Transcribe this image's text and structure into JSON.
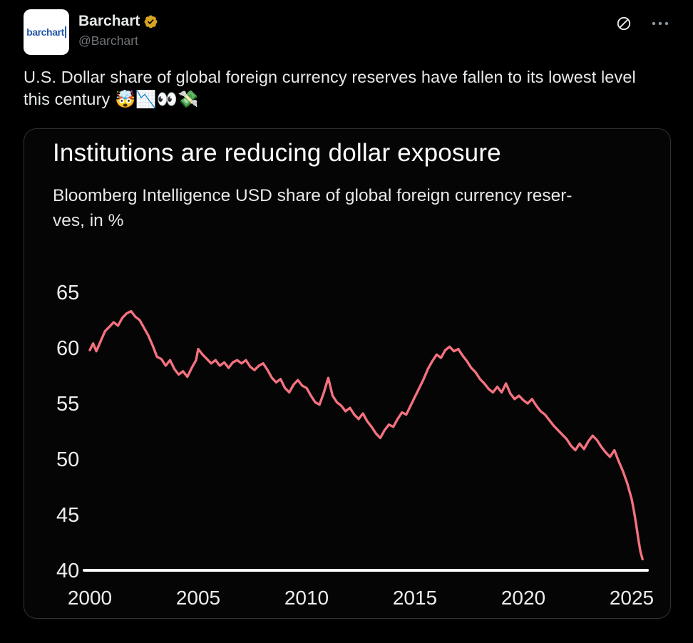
{
  "header": {
    "avatar_text": "barchart",
    "display_name": "Barchart",
    "handle": "@Barchart",
    "badge_color": "#d9a521"
  },
  "tweet": {
    "text": "U.S. Dollar share of global foreign currency reserves have fallen to its lowest level this century 🤯📉👀💸"
  },
  "chart_data": {
    "type": "line",
    "title": "Institutions are reducing dollar exposure",
    "subtitle_line1": "Bloomberg Intelligence USD share of global foreign currency reser-",
    "subtitle_line2": "ves, in %",
    "ylabel": "USD share of global foreign currency reserves, in %",
    "x_ticks": [
      2000,
      2005,
      2010,
      2015,
      2020,
      2025
    ],
    "y_ticks": [
      65,
      60,
      55,
      50,
      45,
      40
    ],
    "ylim": [
      40,
      65
    ],
    "xlim": [
      2000,
      2025
    ],
    "grid": false,
    "legend": "none",
    "line_color": "#f4717f",
    "axis_color": "#ffffff",
    "points": [
      [
        2000.0,
        59.8
      ],
      [
        2000.15,
        60.4
      ],
      [
        2000.3,
        59.7
      ],
      [
        2000.5,
        60.6
      ],
      [
        2000.7,
        61.5
      ],
      [
        2000.9,
        61.9
      ],
      [
        2001.1,
        62.3
      ],
      [
        2001.3,
        62.0
      ],
      [
        2001.5,
        62.7
      ],
      [
        2001.7,
        63.1
      ],
      [
        2001.9,
        63.3
      ],
      [
        2002.1,
        62.8
      ],
      [
        2002.3,
        62.5
      ],
      [
        2002.5,
        61.8
      ],
      [
        2002.7,
        61.1
      ],
      [
        2002.9,
        60.2
      ],
      [
        2003.1,
        59.2
      ],
      [
        2003.3,
        59.0
      ],
      [
        2003.5,
        58.4
      ],
      [
        2003.7,
        58.9
      ],
      [
        2003.9,
        58.1
      ],
      [
        2004.1,
        57.6
      ],
      [
        2004.3,
        57.9
      ],
      [
        2004.5,
        57.4
      ],
      [
        2004.7,
        58.2
      ],
      [
        2004.9,
        58.9
      ],
      [
        2005.0,
        59.9
      ],
      [
        2005.2,
        59.4
      ],
      [
        2005.4,
        59.0
      ],
      [
        2005.6,
        58.6
      ],
      [
        2005.8,
        58.9
      ],
      [
        2006.0,
        58.4
      ],
      [
        2006.2,
        58.7
      ],
      [
        2006.4,
        58.2
      ],
      [
        2006.6,
        58.7
      ],
      [
        2006.8,
        58.9
      ],
      [
        2007.0,
        58.6
      ],
      [
        2007.2,
        58.9
      ],
      [
        2007.4,
        58.3
      ],
      [
        2007.6,
        58.0
      ],
      [
        2007.8,
        58.4
      ],
      [
        2008.0,
        58.6
      ],
      [
        2008.2,
        58.0
      ],
      [
        2008.4,
        57.3
      ],
      [
        2008.6,
        56.9
      ],
      [
        2008.8,
        57.2
      ],
      [
        2009.0,
        56.4
      ],
      [
        2009.2,
        56.0
      ],
      [
        2009.4,
        56.7
      ],
      [
        2009.6,
        57.1
      ],
      [
        2009.8,
        56.6
      ],
      [
        2010.0,
        56.4
      ],
      [
        2010.2,
        55.7
      ],
      [
        2010.4,
        55.1
      ],
      [
        2010.6,
        54.9
      ],
      [
        2010.8,
        56.0
      ],
      [
        2011.0,
        57.3
      ],
      [
        2011.2,
        55.7
      ],
      [
        2011.4,
        55.1
      ],
      [
        2011.6,
        54.8
      ],
      [
        2011.8,
        54.3
      ],
      [
        2012.0,
        54.6
      ],
      [
        2012.2,
        54.0
      ],
      [
        2012.4,
        53.6
      ],
      [
        2012.6,
        54.1
      ],
      [
        2012.8,
        53.4
      ],
      [
        2013.0,
        52.9
      ],
      [
        2013.2,
        52.3
      ],
      [
        2013.4,
        51.9
      ],
      [
        2013.6,
        52.6
      ],
      [
        2013.8,
        53.1
      ],
      [
        2014.0,
        52.9
      ],
      [
        2014.2,
        53.6
      ],
      [
        2014.4,
        54.2
      ],
      [
        2014.6,
        54.0
      ],
      [
        2014.8,
        54.8
      ],
      [
        2015.0,
        55.6
      ],
      [
        2015.2,
        56.4
      ],
      [
        2015.4,
        57.2
      ],
      [
        2015.6,
        58.1
      ],
      [
        2015.8,
        58.8
      ],
      [
        2016.0,
        59.4
      ],
      [
        2016.2,
        59.1
      ],
      [
        2016.4,
        59.8
      ],
      [
        2016.6,
        60.1
      ],
      [
        2016.8,
        59.7
      ],
      [
        2017.0,
        59.9
      ],
      [
        2017.2,
        59.3
      ],
      [
        2017.4,
        58.8
      ],
      [
        2017.6,
        58.2
      ],
      [
        2017.8,
        57.8
      ],
      [
        2018.0,
        57.2
      ],
      [
        2018.2,
        56.8
      ],
      [
        2018.4,
        56.3
      ],
      [
        2018.6,
        56.0
      ],
      [
        2018.8,
        56.5
      ],
      [
        2019.0,
        56.0
      ],
      [
        2019.2,
        56.8
      ],
      [
        2019.4,
        55.9
      ],
      [
        2019.6,
        55.4
      ],
      [
        2019.8,
        55.7
      ],
      [
        2020.0,
        55.3
      ],
      [
        2020.2,
        55.0
      ],
      [
        2020.4,
        55.4
      ],
      [
        2020.6,
        54.8
      ],
      [
        2020.8,
        54.3
      ],
      [
        2021.0,
        54.0
      ],
      [
        2021.2,
        53.5
      ],
      [
        2021.4,
        53.0
      ],
      [
        2021.6,
        52.6
      ],
      [
        2021.8,
        52.2
      ],
      [
        2022.0,
        51.8
      ],
      [
        2022.2,
        51.2
      ],
      [
        2022.4,
        50.8
      ],
      [
        2022.6,
        51.4
      ],
      [
        2022.8,
        50.9
      ],
      [
        2023.0,
        51.6
      ],
      [
        2023.2,
        52.1
      ],
      [
        2023.4,
        51.7
      ],
      [
        2023.6,
        51.1
      ],
      [
        2023.8,
        50.6
      ],
      [
        2024.0,
        50.2
      ],
      [
        2024.2,
        50.8
      ],
      [
        2024.4,
        49.8
      ],
      [
        2024.6,
        48.9
      ],
      [
        2024.8,
        47.8
      ],
      [
        2025.0,
        46.4
      ],
      [
        2025.1,
        45.4
      ],
      [
        2025.2,
        44.2
      ],
      [
        2025.3,
        42.9
      ],
      [
        2025.4,
        41.7
      ],
      [
        2025.5,
        41.0
      ]
    ]
  }
}
